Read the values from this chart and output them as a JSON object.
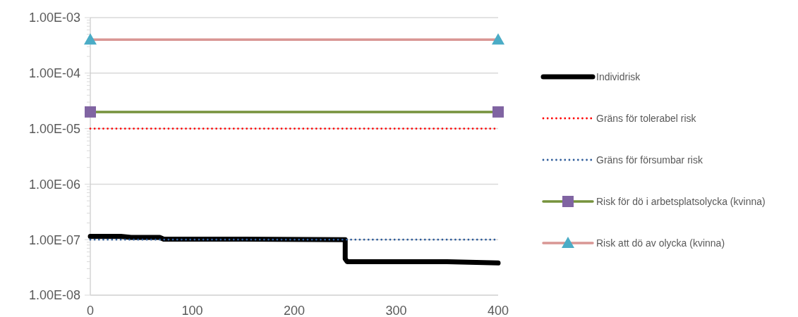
{
  "chart_data": {
    "type": "line",
    "log": "y",
    "grid": "y",
    "legend": "right",
    "xlim": [
      0,
      400
    ],
    "xticks": [
      0,
      100,
      200,
      300,
      400
    ],
    "ylim": [
      1e-08,
      0.001
    ],
    "yticks": [
      {
        "value": 1e-08,
        "label": "1.00E-08"
      },
      {
        "value": 1e-07,
        "label": "1.00E-07"
      },
      {
        "value": 1e-06,
        "label": "1.00E-06"
      },
      {
        "value": 1e-05,
        "label": "1.00E-05"
      },
      {
        "value": 0.0001,
        "label": "1.00E-04"
      },
      {
        "value": 0.001,
        "label": "1.00E-03"
      }
    ],
    "series": [
      {
        "name": "Individrisk",
        "color": "#000000",
        "line_style": "solid",
        "marker": "none",
        "x": [
          0,
          30,
          40,
          68,
          72,
          150,
          250,
          250,
          252,
          350,
          400
        ],
        "values": [
          1.15e-07,
          1.15e-07,
          1.1e-07,
          1.1e-07,
          1.02e-07,
          1.02e-07,
          1e-07,
          4.5e-08,
          4e-08,
          4e-08,
          3.8e-08
        ]
      },
      {
        "name": "Gräns för tolerabel risk",
        "color": "#ff0000",
        "line_style": "dotted",
        "marker": "none",
        "x": [
          0,
          400
        ],
        "values": [
          1e-05,
          1e-05
        ]
      },
      {
        "name": "Gräns för försumbar risk",
        "color": "#2e5c9a",
        "line_style": "dotted",
        "marker": "none",
        "x": [
          0,
          400
        ],
        "values": [
          1e-07,
          1e-07
        ]
      },
      {
        "name": "Risk för dö i arbetsplatsolycka (kvinna)",
        "color": "#76923c",
        "line_style": "solid",
        "marker": "square",
        "x": [
          0,
          400
        ],
        "values": [
          2e-05,
          2e-05
        ]
      },
      {
        "name": "Risk att dö av olycka (kvinna)",
        "color": "#d99694",
        "line_style": "solid",
        "marker": "triangle",
        "x": [
          0,
          400
        ],
        "values": [
          0.0004,
          0.0004
        ]
      }
    ]
  }
}
